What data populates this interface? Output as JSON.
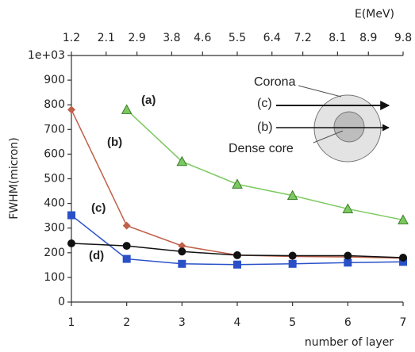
{
  "chart_data": {
    "type": "line",
    "x_label": "number of layer",
    "y_label": "FWHM(micron)",
    "x2_label": "E(MeV)",
    "x": [
      1,
      2,
      3,
      4,
      5,
      6,
      7
    ],
    "xlim": [
      1,
      7
    ],
    "xticks": [
      1,
      2,
      3,
      4,
      5,
      6,
      7
    ],
    "ylim": [
      0,
      1000
    ],
    "yticks": [
      0,
      100,
      200,
      300,
      400,
      500,
      600,
      700,
      800,
      900,
      {
        "value": 1000,
        "label": "1e+03"
      }
    ],
    "x2lim": [
      1.2,
      9.8
    ],
    "x2ticks": [
      1.2,
      2.1,
      2.9,
      3.8,
      4.6,
      5.5,
      6.4,
      7.2,
      8.1,
      8.9,
      9.8
    ],
    "series": [
      {
        "name": "(a)",
        "color": "#7cc95f",
        "marker": "triangle",
        "values": [
          null,
          780,
          570,
          478,
          432,
          378,
          333
        ]
      },
      {
        "name": "(b)",
        "color": "#c0604a",
        "marker": "diamond",
        "values": [
          780,
          310,
          228,
          190,
          185,
          183,
          178
        ]
      },
      {
        "name": "(c)",
        "color": "#2a50c8",
        "marker": "square",
        "values": [
          352,
          175,
          155,
          152,
          155,
          160,
          163
        ]
      },
      {
        "name": "(d)",
        "color": "#111111",
        "marker": "circle",
        "values": [
          238,
          228,
          205,
          190,
          188,
          188,
          180
        ]
      }
    ],
    "inset": {
      "outer": "Corona",
      "inner": "Dense core",
      "ray_c": "(c)",
      "ray_b": "(b)"
    }
  }
}
